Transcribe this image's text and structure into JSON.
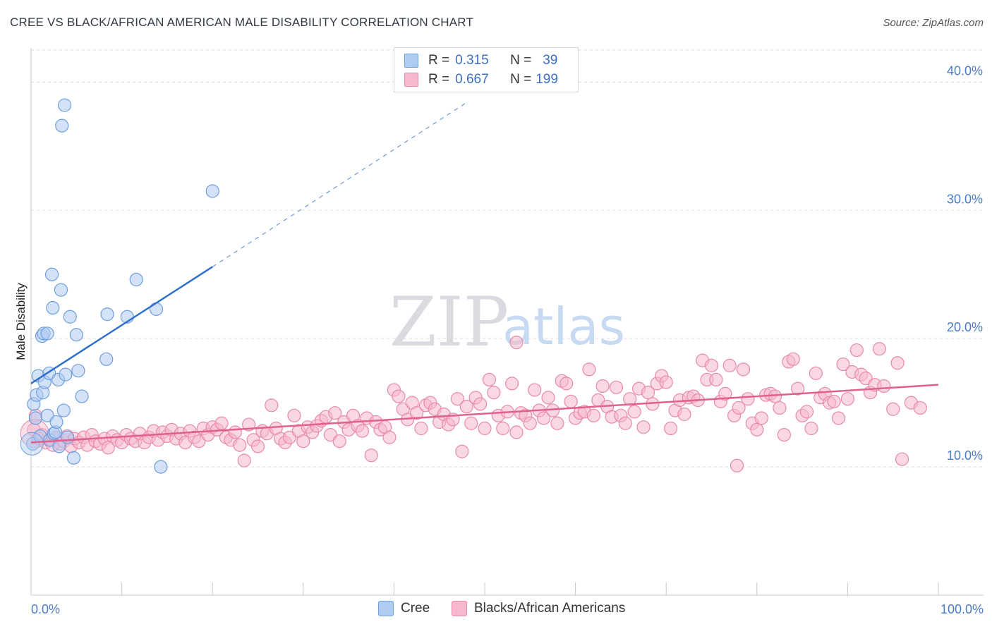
{
  "header": {
    "title": "CREE VS BLACK/AFRICAN AMERICAN MALE DISABILITY CORRELATION CHART",
    "source": "Source: ZipAtlas.com"
  },
  "watermark": {
    "zip": "ZIP",
    "atlas": "atlas"
  },
  "legend": {
    "rows": [
      {
        "r_label": "R =",
        "r_value": "0.315",
        "n_label": "N =",
        "n_value": "39"
      },
      {
        "r_label": "R =",
        "r_value": "0.667",
        "n_label": "N =",
        "n_value": "199"
      }
    ]
  },
  "colors": {
    "cree_fill": "#aecbf0",
    "cree_stroke": "#6f9ee0",
    "cree_line": "#2f6fcc",
    "black_fill": "#f6b8cb",
    "black_stroke": "#e889a8",
    "black_line": "#e06090",
    "grid": "#dcdcdc",
    "tick_text": "#4a7cc9"
  },
  "chart_data": {
    "type": "scatter",
    "title": "CREE VS BLACK/AFRICAN AMERICAN MALE DISABILITY CORRELATION CHART",
    "xlabel": "",
    "ylabel": "Male Disability",
    "xlim": [
      0,
      100
    ],
    "ylim": [
      0,
      42
    ],
    "x_tick_labels": [
      "0.0%",
      "100.0%"
    ],
    "y_ticks": [
      10,
      20,
      30,
      40
    ],
    "y_tick_labels": [
      "10.0%",
      "20.0%",
      "30.0%",
      "40.0%"
    ],
    "grid": true,
    "legend_position": "bottom",
    "series": [
      {
        "name": "Cree",
        "R": 0.315,
        "N": 39,
        "trend": {
          "x": [
            0,
            20
          ],
          "y": [
            16.5,
            25.6
          ],
          "dashed_to": [
            48,
            38.4
          ]
        },
        "points": [
          [
            0.2,
            11.8
          ],
          [
            0.3,
            14.9
          ],
          [
            0.5,
            13.8
          ],
          [
            0.6,
            15.6
          ],
          [
            0.8,
            17.1
          ],
          [
            1.0,
            12.4
          ],
          [
            1.2,
            20.2
          ],
          [
            1.3,
            15.8
          ],
          [
            1.4,
            20.4
          ],
          [
            1.5,
            16.6
          ],
          [
            1.8,
            14.0
          ],
          [
            1.8,
            20.4
          ],
          [
            2.0,
            17.3
          ],
          [
            2.1,
            12.1
          ],
          [
            2.3,
            25.0
          ],
          [
            2.4,
            22.4
          ],
          [
            2.5,
            12.6
          ],
          [
            2.7,
            12.7
          ],
          [
            2.8,
            13.5
          ],
          [
            3.0,
            16.8
          ],
          [
            3.1,
            11.6
          ],
          [
            3.3,
            23.8
          ],
          [
            3.4,
            36.6
          ],
          [
            3.6,
            14.4
          ],
          [
            3.7,
            38.2
          ],
          [
            3.8,
            17.2
          ],
          [
            4.3,
            21.7
          ],
          [
            4.7,
            10.7
          ],
          [
            5.0,
            20.3
          ],
          [
            5.2,
            17.5
          ],
          [
            5.6,
            15.5
          ],
          [
            8.3,
            18.4
          ],
          [
            8.4,
            21.9
          ],
          [
            10.6,
            21.7
          ],
          [
            11.6,
            24.6
          ],
          [
            13.8,
            22.3
          ],
          [
            14.3,
            10.0
          ],
          [
            20.0,
            31.5
          ],
          [
            4.0,
            12.3
          ]
        ]
      },
      {
        "name": "Blacks/African Americans",
        "R": 0.667,
        "N": 199,
        "trend": {
          "x": [
            0,
            100
          ],
          "y": [
            11.9,
            16.4
          ]
        },
        "points": [
          [
            0.3,
            12.9
          ],
          [
            0.5,
            14.0
          ],
          [
            0.8,
            12.2
          ],
          [
            1.2,
            12.5
          ],
          [
            1.6,
            11.9
          ],
          [
            2.0,
            12.1
          ],
          [
            2.4,
            11.7
          ],
          [
            2.8,
            12.3
          ],
          [
            3.2,
            11.8
          ],
          [
            3.6,
            12.0
          ],
          [
            4.0,
            12.4
          ],
          [
            4.4,
            11.6
          ],
          [
            4.8,
            12.2
          ],
          [
            5.3,
            11.9
          ],
          [
            5.8,
            12.3
          ],
          [
            6.2,
            11.7
          ],
          [
            6.7,
            12.5
          ],
          [
            7.1,
            12.0
          ],
          [
            7.6,
            11.8
          ],
          [
            8.1,
            12.2
          ],
          [
            8.5,
            11.5
          ],
          [
            9.0,
            12.4
          ],
          [
            9.5,
            12.1
          ],
          [
            10.0,
            11.9
          ],
          [
            10.5,
            12.5
          ],
          [
            11.0,
            12.2
          ],
          [
            11.5,
            12.0
          ],
          [
            12.0,
            12.6
          ],
          [
            12.5,
            11.9
          ],
          [
            13.0,
            12.3
          ],
          [
            13.5,
            12.8
          ],
          [
            14.0,
            12.1
          ],
          [
            14.5,
            12.7
          ],
          [
            15.0,
            12.4
          ],
          [
            15.5,
            12.9
          ],
          [
            16.0,
            12.2
          ],
          [
            16.5,
            12.6
          ],
          [
            17.0,
            11.9
          ],
          [
            17.5,
            12.8
          ],
          [
            18.0,
            12.3
          ],
          [
            18.5,
            12.0
          ],
          [
            19.0,
            13.0
          ],
          [
            19.5,
            12.5
          ],
          [
            20.0,
            13.1
          ],
          [
            20.5,
            12.9
          ],
          [
            21.0,
            13.4
          ],
          [
            21.5,
            12.3
          ],
          [
            22.0,
            12.1
          ],
          [
            22.5,
            12.7
          ],
          [
            23.0,
            11.7
          ],
          [
            23.5,
            10.5
          ],
          [
            24.0,
            13.3
          ],
          [
            24.5,
            12.1
          ],
          [
            25.0,
            11.6
          ],
          [
            25.5,
            12.8
          ],
          [
            26.0,
            12.6
          ],
          [
            26.5,
            14.8
          ],
          [
            27.0,
            13.0
          ],
          [
            27.5,
            12.2
          ],
          [
            28.0,
            11.9
          ],
          [
            28.5,
            12.3
          ],
          [
            29.0,
            14.0
          ],
          [
            29.5,
            12.8
          ],
          [
            30.0,
            12.0
          ],
          [
            30.5,
            13.1
          ],
          [
            31.0,
            12.7
          ],
          [
            31.5,
            13.2
          ],
          [
            32.0,
            13.6
          ],
          [
            32.5,
            13.9
          ],
          [
            33.0,
            12.5
          ],
          [
            33.5,
            14.2
          ],
          [
            34.0,
            12.0
          ],
          [
            34.5,
            13.5
          ],
          [
            35.0,
            12.9
          ],
          [
            35.5,
            14.0
          ],
          [
            36.0,
            13.2
          ],
          [
            36.5,
            12.8
          ],
          [
            37.0,
            13.8
          ],
          [
            37.5,
            10.9
          ],
          [
            38.0,
            13.5
          ],
          [
            38.5,
            12.9
          ],
          [
            39.0,
            13.1
          ],
          [
            39.5,
            12.3
          ],
          [
            40.0,
            16.0
          ],
          [
            40.5,
            15.5
          ],
          [
            41.0,
            14.5
          ],
          [
            41.5,
            13.7
          ],
          [
            42.0,
            15.0
          ],
          [
            42.5,
            14.2
          ],
          [
            43.0,
            13.0
          ],
          [
            43.5,
            14.8
          ],
          [
            44.0,
            15.0
          ],
          [
            44.5,
            14.5
          ],
          [
            45.0,
            13.5
          ],
          [
            45.5,
            14.1
          ],
          [
            46.0,
            13.3
          ],
          [
            46.5,
            13.7
          ],
          [
            47.0,
            15.3
          ],
          [
            47.5,
            11.2
          ],
          [
            48.0,
            14.7
          ],
          [
            48.5,
            13.4
          ],
          [
            49.0,
            15.4
          ],
          [
            49.5,
            14.9
          ],
          [
            50.0,
            13.0
          ],
          [
            50.5,
            16.8
          ],
          [
            51.0,
            15.8
          ],
          [
            51.5,
            14.0
          ],
          [
            52.0,
            13.0
          ],
          [
            52.5,
            14.3
          ],
          [
            53.0,
            16.5
          ],
          [
            53.5,
            12.7
          ],
          [
            54.0,
            14.2
          ],
          [
            54.5,
            14.0
          ],
          [
            55.0,
            13.4
          ],
          [
            55.5,
            16.0
          ],
          [
            56.0,
            14.4
          ],
          [
            56.5,
            13.8
          ],
          [
            57.0,
            15.4
          ],
          [
            57.5,
            14.4
          ],
          [
            58.0,
            13.4
          ],
          [
            58.5,
            16.7
          ],
          [
            59.0,
            16.5
          ],
          [
            59.5,
            15.1
          ],
          [
            60.0,
            13.8
          ],
          [
            60.5,
            14.2
          ],
          [
            61.0,
            14.3
          ],
          [
            61.5,
            17.6
          ],
          [
            62.0,
            14.0
          ],
          [
            62.5,
            15.2
          ],
          [
            63.0,
            16.3
          ],
          [
            63.5,
            14.7
          ],
          [
            64.0,
            13.9
          ],
          [
            64.5,
            16.2
          ],
          [
            65.0,
            14.0
          ],
          [
            65.5,
            13.4
          ],
          [
            66.0,
            15.3
          ],
          [
            66.5,
            14.3
          ],
          [
            67.0,
            16.1
          ],
          [
            67.5,
            13.1
          ],
          [
            68.0,
            15.8
          ],
          [
            68.5,
            14.9
          ],
          [
            69.0,
            16.5
          ],
          [
            69.5,
            17.1
          ],
          [
            70.0,
            16.6
          ],
          [
            70.5,
            13.0
          ],
          [
            71.0,
            14.4
          ],
          [
            71.5,
            15.2
          ],
          [
            72.0,
            14.1
          ],
          [
            72.5,
            15.4
          ],
          [
            73.0,
            15.5
          ],
          [
            73.5,
            15.2
          ],
          [
            74.0,
            18.3
          ],
          [
            74.5,
            16.8
          ],
          [
            75.0,
            17.9
          ],
          [
            75.5,
            16.8
          ],
          [
            76.0,
            15.1
          ],
          [
            76.5,
            15.7
          ],
          [
            77.0,
            17.9
          ],
          [
            77.5,
            14.0
          ],
          [
            78.0,
            14.6
          ],
          [
            78.5,
            17.6
          ],
          [
            79.0,
            15.3
          ],
          [
            79.5,
            13.4
          ],
          [
            80.0,
            12.9
          ],
          [
            80.5,
            13.8
          ],
          [
            81.0,
            15.6
          ],
          [
            81.5,
            15.7
          ],
          [
            82.0,
            15.5
          ],
          [
            82.5,
            14.6
          ],
          [
            83.0,
            12.5
          ],
          [
            83.5,
            18.2
          ],
          [
            84.0,
            18.4
          ],
          [
            84.5,
            16.1
          ],
          [
            85.0,
            14.0
          ],
          [
            85.5,
            14.3
          ],
          [
            86.0,
            13.0
          ],
          [
            86.5,
            17.3
          ],
          [
            87.0,
            15.4
          ],
          [
            87.5,
            15.7
          ],
          [
            88.0,
            15.0
          ],
          [
            88.5,
            15.1
          ],
          [
            89.0,
            13.8
          ],
          [
            89.5,
            18.0
          ],
          [
            90.0,
            15.3
          ],
          [
            90.5,
            17.4
          ],
          [
            91.0,
            19.1
          ],
          [
            91.5,
            17.2
          ],
          [
            92.0,
            16.9
          ],
          [
            92.5,
            15.8
          ],
          [
            93.0,
            16.4
          ],
          [
            93.5,
            19.2
          ],
          [
            94.0,
            16.3
          ],
          [
            95.0,
            14.5
          ],
          [
            95.5,
            18.1
          ],
          [
            96.0,
            10.6
          ],
          [
            97.0,
            15.0
          ],
          [
            98.0,
            14.6
          ],
          [
            53.5,
            19.7
          ],
          [
            77.8,
            10.1
          ]
        ]
      }
    ]
  }
}
